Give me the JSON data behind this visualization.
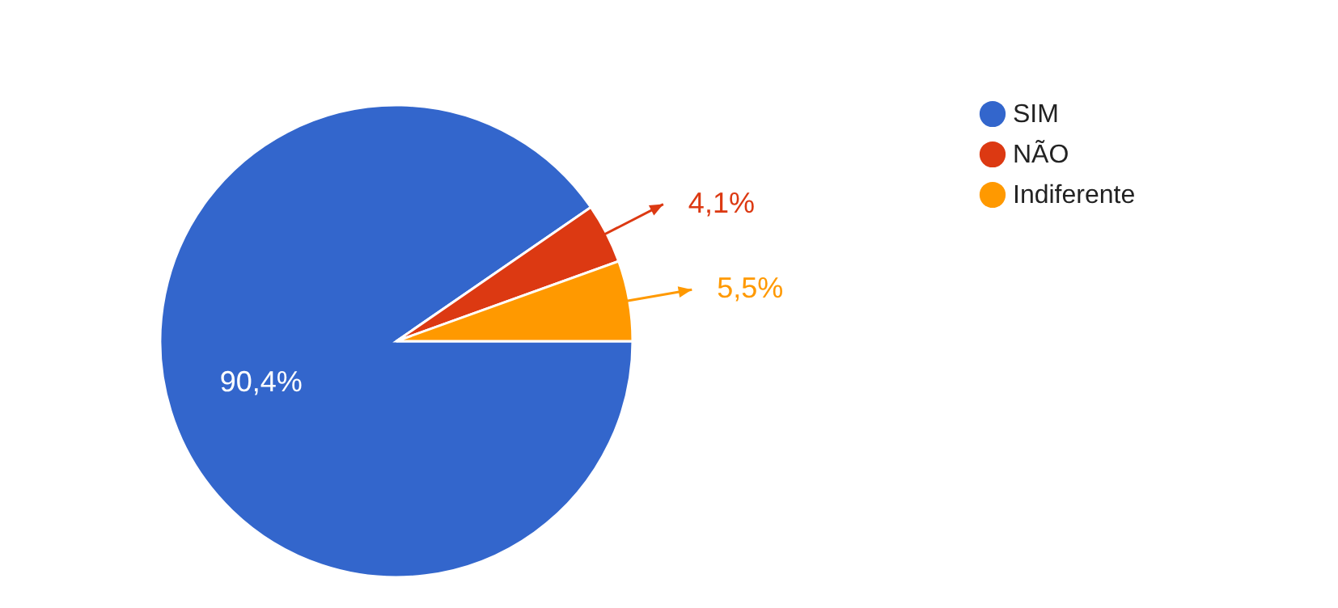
{
  "chart_data": {
    "type": "pie",
    "categories": [
      "SIM",
      "NÃO",
      "Indiferente"
    ],
    "values": [
      90.4,
      4.1,
      5.5
    ],
    "colors": [
      "#3366cc",
      "#dc3912",
      "#ff9900"
    ],
    "value_labels": [
      "90,4%",
      "4,1%",
      "5,5%"
    ],
    "legend": "right"
  }
}
